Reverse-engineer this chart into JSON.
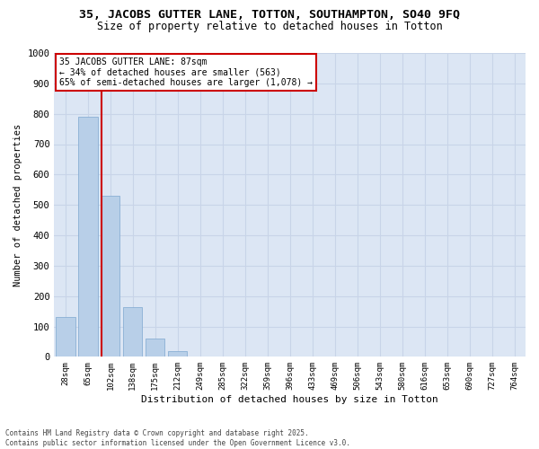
{
  "title1": "35, JACOBS GUTTER LANE, TOTTON, SOUTHAMPTON, SO40 9FQ",
  "title2": "Size of property relative to detached houses in Totton",
  "xlabel": "Distribution of detached houses by size in Totton",
  "ylabel": "Number of detached properties",
  "categories": [
    "28sqm",
    "65sqm",
    "102sqm",
    "138sqm",
    "175sqm",
    "212sqm",
    "249sqm",
    "285sqm",
    "322sqm",
    "359sqm",
    "396sqm",
    "433sqm",
    "469sqm",
    "506sqm",
    "543sqm",
    "580sqm",
    "616sqm",
    "653sqm",
    "690sqm",
    "727sqm",
    "764sqm"
  ],
  "bar_heights": [
    130,
    790,
    530,
    165,
    60,
    20,
    0,
    0,
    0,
    0,
    0,
    0,
    0,
    0,
    0,
    0,
    0,
    0,
    0,
    0,
    0
  ],
  "bar_color": "#b8cfe8",
  "bar_edge_color": "#8aafd4",
  "annotation_line1": "35 JACOBS GUTTER LANE: 87sqm",
  "annotation_line2": "← 34% of detached houses are smaller (563)",
  "annotation_line3": "65% of semi-detached houses are larger (1,078) →",
  "vline_color": "#cc0000",
  "ylim": [
    0,
    1000
  ],
  "yticks": [
    0,
    100,
    200,
    300,
    400,
    500,
    600,
    700,
    800,
    900,
    1000
  ],
  "grid_color": "#c8d4e8",
  "background_color": "#dce6f4",
  "footer1": "Contains HM Land Registry data © Crown copyright and database right 2025.",
  "footer2": "Contains public sector information licensed under the Open Government Licence v3.0.",
  "annotation_box_edgecolor": "#cc0000",
  "title1_fontsize": 9.5,
  "title2_fontsize": 8.5
}
